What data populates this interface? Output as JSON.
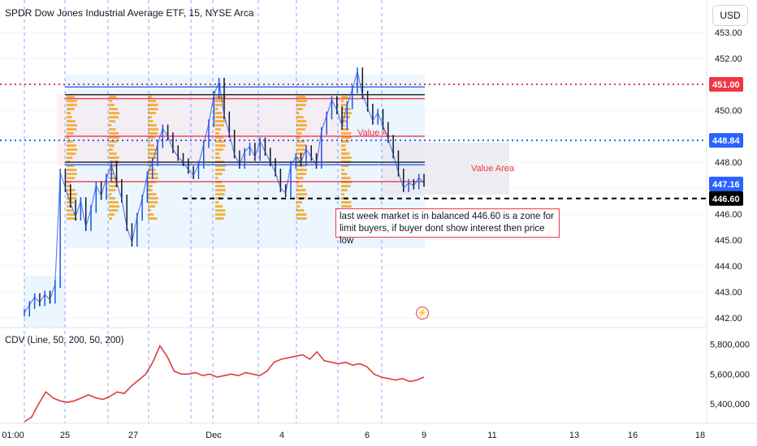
{
  "header": {
    "title": "SPDR Dow Jones Industrial Average ETF, 15, NYSE Arca",
    "currency": "USD"
  },
  "indicator": {
    "label": "CDV (Line, 50, 200, 50, 200)"
  },
  "annotations": {
    "value_area": "Value Area",
    "value_area_overlap": "Value A",
    "note": "last week market is in balanced 446.60 is a zone for limit buyers, if buyer dont show interest then price low"
  },
  "colors": {
    "up": "#1e53e5",
    "down": "#131722",
    "red": "#f23645",
    "blue_dotted": "#2962ff",
    "cdv": "#e03c3c",
    "grid": "#f0f3fa",
    "session": "#2962ff",
    "va_fill": "#e3f2fd",
    "profile": "#f5a623"
  },
  "chart_data": [
    {
      "type": "line",
      "title": "SPDR Dow Jones Industrial Average ETF, 15, NYSE Arca",
      "ylim": [
        441.7,
        453.6
      ],
      "yticks": [
        442.0,
        443.0,
        444.0,
        445.0,
        446.0,
        447.0,
        448.0,
        449.0,
        450.0,
        451.0,
        452.0,
        453.0
      ],
      "xticks": [
        "01:00",
        "25",
        "27",
        "Dec",
        "4",
        "6",
        "9",
        "11",
        "13",
        "16",
        "18"
      ],
      "price_labels": [
        {
          "value": 451.0,
          "label": "451.00",
          "color": "#f23645"
        },
        {
          "value": 448.84,
          "label": "448.84",
          "color": "#2962ff"
        },
        {
          "value": 447.16,
          "label": "447.16",
          "color": "#2962ff"
        },
        {
          "value": 446.6,
          "label": "446.60",
          "color": "#000000"
        }
      ],
      "horizontal_lines": [
        {
          "value": 451.0,
          "style": "dotted",
          "color": "#f23645"
        },
        {
          "value": 448.84,
          "style": "dotted",
          "color": "#2962ff"
        },
        {
          "value": 446.6,
          "style": "dashed",
          "color": "#000000"
        }
      ],
      "series": [
        {
          "name": "",
          "values": [
            442.2,
            442.5,
            442.8,
            442.6,
            442.9,
            442.7,
            443.3,
            447.6,
            447.0,
            446.4,
            445.9,
            446.5,
            445.5,
            446.2,
            447.1,
            446.7,
            447.4,
            447.9,
            447.2,
            446.6,
            445.5,
            444.9,
            445.9,
            446.6,
            447.5,
            448.0,
            448.7,
            449.3,
            449.0,
            448.5,
            448.2,
            448.0,
            447.7,
            447.5,
            447.9,
            448.7,
            449.5,
            450.6,
            451.1,
            449.8,
            449.1,
            448.3,
            447.9,
            448.4,
            448.6,
            448.2,
            448.8,
            448.4,
            448.0,
            447.6,
            447.0,
            446.8,
            447.9,
            448.2,
            448.0,
            448.5,
            448.2,
            447.9,
            449.2,
            449.8,
            450.4,
            450.0,
            449.4,
            450.2,
            450.8,
            451.5,
            450.6,
            450.1,
            449.6,
            449.9,
            449.4,
            448.9,
            448.3,
            447.6,
            447.0,
            447.2,
            447.1,
            447.4,
            447.2
          ]
        }
      ]
    },
    {
      "type": "line",
      "title": "CDV (Line, 50, 200, 50, 200)",
      "ylim": [
        5280000,
        5880000
      ],
      "yticks": [
        5400000,
        5600000,
        5800000
      ],
      "ytick_labels": [
        "5,400,000",
        "5,600,000",
        "5,800,000"
      ],
      "series": [
        {
          "name": "",
          "values": [
            5280000,
            5310000,
            5400000,
            5480000,
            5440000,
            5420000,
            5410000,
            5420000,
            5440000,
            5460000,
            5440000,
            5430000,
            5450000,
            5480000,
            5470000,
            5520000,
            5560000,
            5600000,
            5680000,
            5790000,
            5720000,
            5620000,
            5600000,
            5600000,
            5610000,
            5590000,
            5600000,
            5580000,
            5590000,
            5600000,
            5590000,
            5610000,
            5600000,
            5590000,
            5620000,
            5680000,
            5700000,
            5710000,
            5720000,
            5730000,
            5700000,
            5750000,
            5690000,
            5680000,
            5670000,
            5680000,
            5660000,
            5670000,
            5650000,
            5600000,
            5580000,
            5570000,
            5560000,
            5570000,
            5550000,
            5560000,
            5580000
          ]
        }
      ]
    }
  ]
}
